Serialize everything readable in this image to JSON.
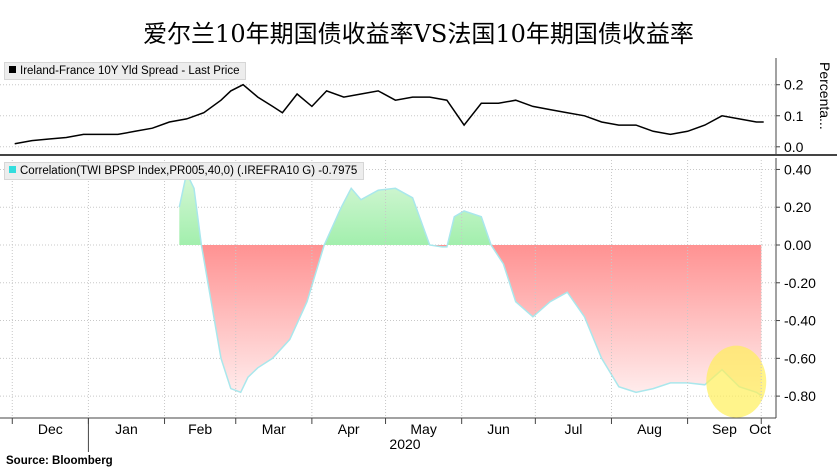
{
  "title": "爱尔兰10年期国债收益率VS法国10年期国债收益率",
  "source": "Source: Bloomberg",
  "colors": {
    "spread_line": "#000000",
    "corr_positive": "#33dd55",
    "corr_negative": "#ff6666",
    "corr_line": "#a9e7ec",
    "highlight": "#ffef5a"
  },
  "chart_data": [
    {
      "type": "line",
      "legend": "Ireland-France 10Y Yld Spread - Last Price",
      "ylabel": "Percenta...",
      "ylim": [
        -0.02,
        0.27
      ],
      "yticks": [
        "0.0",
        "0.1",
        "0.2"
      ],
      "ytick_values": [
        0.0,
        0.1,
        0.2
      ],
      "grid": true,
      "series": [
        {
          "x": [
            "2019-12-02",
            "2019-12-09",
            "2019-12-16",
            "2019-12-23",
            "2019-12-30",
            "2020-01-06",
            "2020-01-13",
            "2020-01-20",
            "2020-01-27",
            "2020-02-03",
            "2020-02-10",
            "2020-02-17",
            "2020-02-24",
            "2020-02-28",
            "2020-03-04",
            "2020-03-10",
            "2020-03-16",
            "2020-03-20",
            "2020-03-26",
            "2020-04-01",
            "2020-04-07",
            "2020-04-14",
            "2020-04-21",
            "2020-04-28",
            "2020-05-05",
            "2020-05-12",
            "2020-05-19",
            "2020-05-26",
            "2020-06-02",
            "2020-06-09",
            "2020-06-16",
            "2020-06-23",
            "2020-06-30",
            "2020-07-07",
            "2020-07-14",
            "2020-07-21",
            "2020-07-28",
            "2020-08-04",
            "2020-08-11",
            "2020-08-18",
            "2020-08-25",
            "2020-09-01",
            "2020-09-08",
            "2020-09-15",
            "2020-09-22",
            "2020-09-29",
            "2020-10-02"
          ],
          "values": [
            0.01,
            0.02,
            0.025,
            0.03,
            0.04,
            0.04,
            0.04,
            0.05,
            0.06,
            0.08,
            0.09,
            0.11,
            0.15,
            0.18,
            0.2,
            0.16,
            0.13,
            0.11,
            0.17,
            0.13,
            0.18,
            0.16,
            0.17,
            0.18,
            0.15,
            0.16,
            0.16,
            0.15,
            0.07,
            0.14,
            0.14,
            0.15,
            0.13,
            0.12,
            0.11,
            0.1,
            0.08,
            0.07,
            0.07,
            0.05,
            0.04,
            0.05,
            0.07,
            0.1,
            0.09,
            0.08,
            0.08
          ]
        }
      ]
    },
    {
      "type": "area",
      "legend": "Correlation(TWI BPSP Index,PR005,40,0) (.IREFRA10 G) -0.7975",
      "ylim": [
        -0.9,
        0.45
      ],
      "yticks": [
        "0.40",
        "0.20",
        "0.00",
        "-0.20",
        "-0.40",
        "-0.60",
        "-0.80"
      ],
      "ytick_values": [
        0.4,
        0.2,
        0.0,
        -0.2,
        -0.4,
        -0.6,
        -0.8
      ],
      "grid": true,
      "x_axis_labels": [
        "Dec",
        "Jan",
        "Feb",
        "Mar",
        "Apr",
        "May",
        "Jun",
        "Jul",
        "Aug",
        "Sep",
        "Oct"
      ],
      "x_axis_year": "2020",
      "annotation": "yellow circle highlight on latest values (late Sep – early Oct)",
      "series": [
        {
          "x": [
            "2020-02-07",
            "2020-02-10",
            "2020-02-13",
            "2020-02-16",
            "2020-02-20",
            "2020-02-24",
            "2020-02-28",
            "2020-03-03",
            "2020-03-06",
            "2020-03-10",
            "2020-03-16",
            "2020-03-23",
            "2020-03-30",
            "2020-04-06",
            "2020-04-13",
            "2020-04-17",
            "2020-04-21",
            "2020-04-28",
            "2020-05-05",
            "2020-05-12",
            "2020-05-19",
            "2020-05-24",
            "2020-05-26",
            "2020-05-29",
            "2020-06-02",
            "2020-06-09",
            "2020-06-13",
            "2020-06-18",
            "2020-06-23",
            "2020-06-30",
            "2020-07-07",
            "2020-07-14",
            "2020-07-21",
            "2020-07-28",
            "2020-08-04",
            "2020-08-11",
            "2020-08-18",
            "2020-08-25",
            "2020-09-01",
            "2020-09-08",
            "2020-09-15",
            "2020-09-22",
            "2020-09-29",
            "2020-10-01"
          ],
          "values": [
            0.2,
            0.38,
            0.3,
            0.0,
            -0.3,
            -0.6,
            -0.76,
            -0.78,
            -0.7,
            -0.65,
            -0.6,
            -0.5,
            -0.3,
            0.0,
            0.2,
            0.3,
            0.24,
            0.29,
            0.3,
            0.25,
            0.0,
            -0.01,
            -0.01,
            0.15,
            0.18,
            0.15,
            0.0,
            -0.1,
            -0.3,
            -0.38,
            -0.3,
            -0.25,
            -0.38,
            -0.6,
            -0.75,
            -0.78,
            -0.76,
            -0.73,
            -0.73,
            -0.74,
            -0.66,
            -0.75,
            -0.78,
            -0.7975
          ]
        }
      ]
    }
  ]
}
